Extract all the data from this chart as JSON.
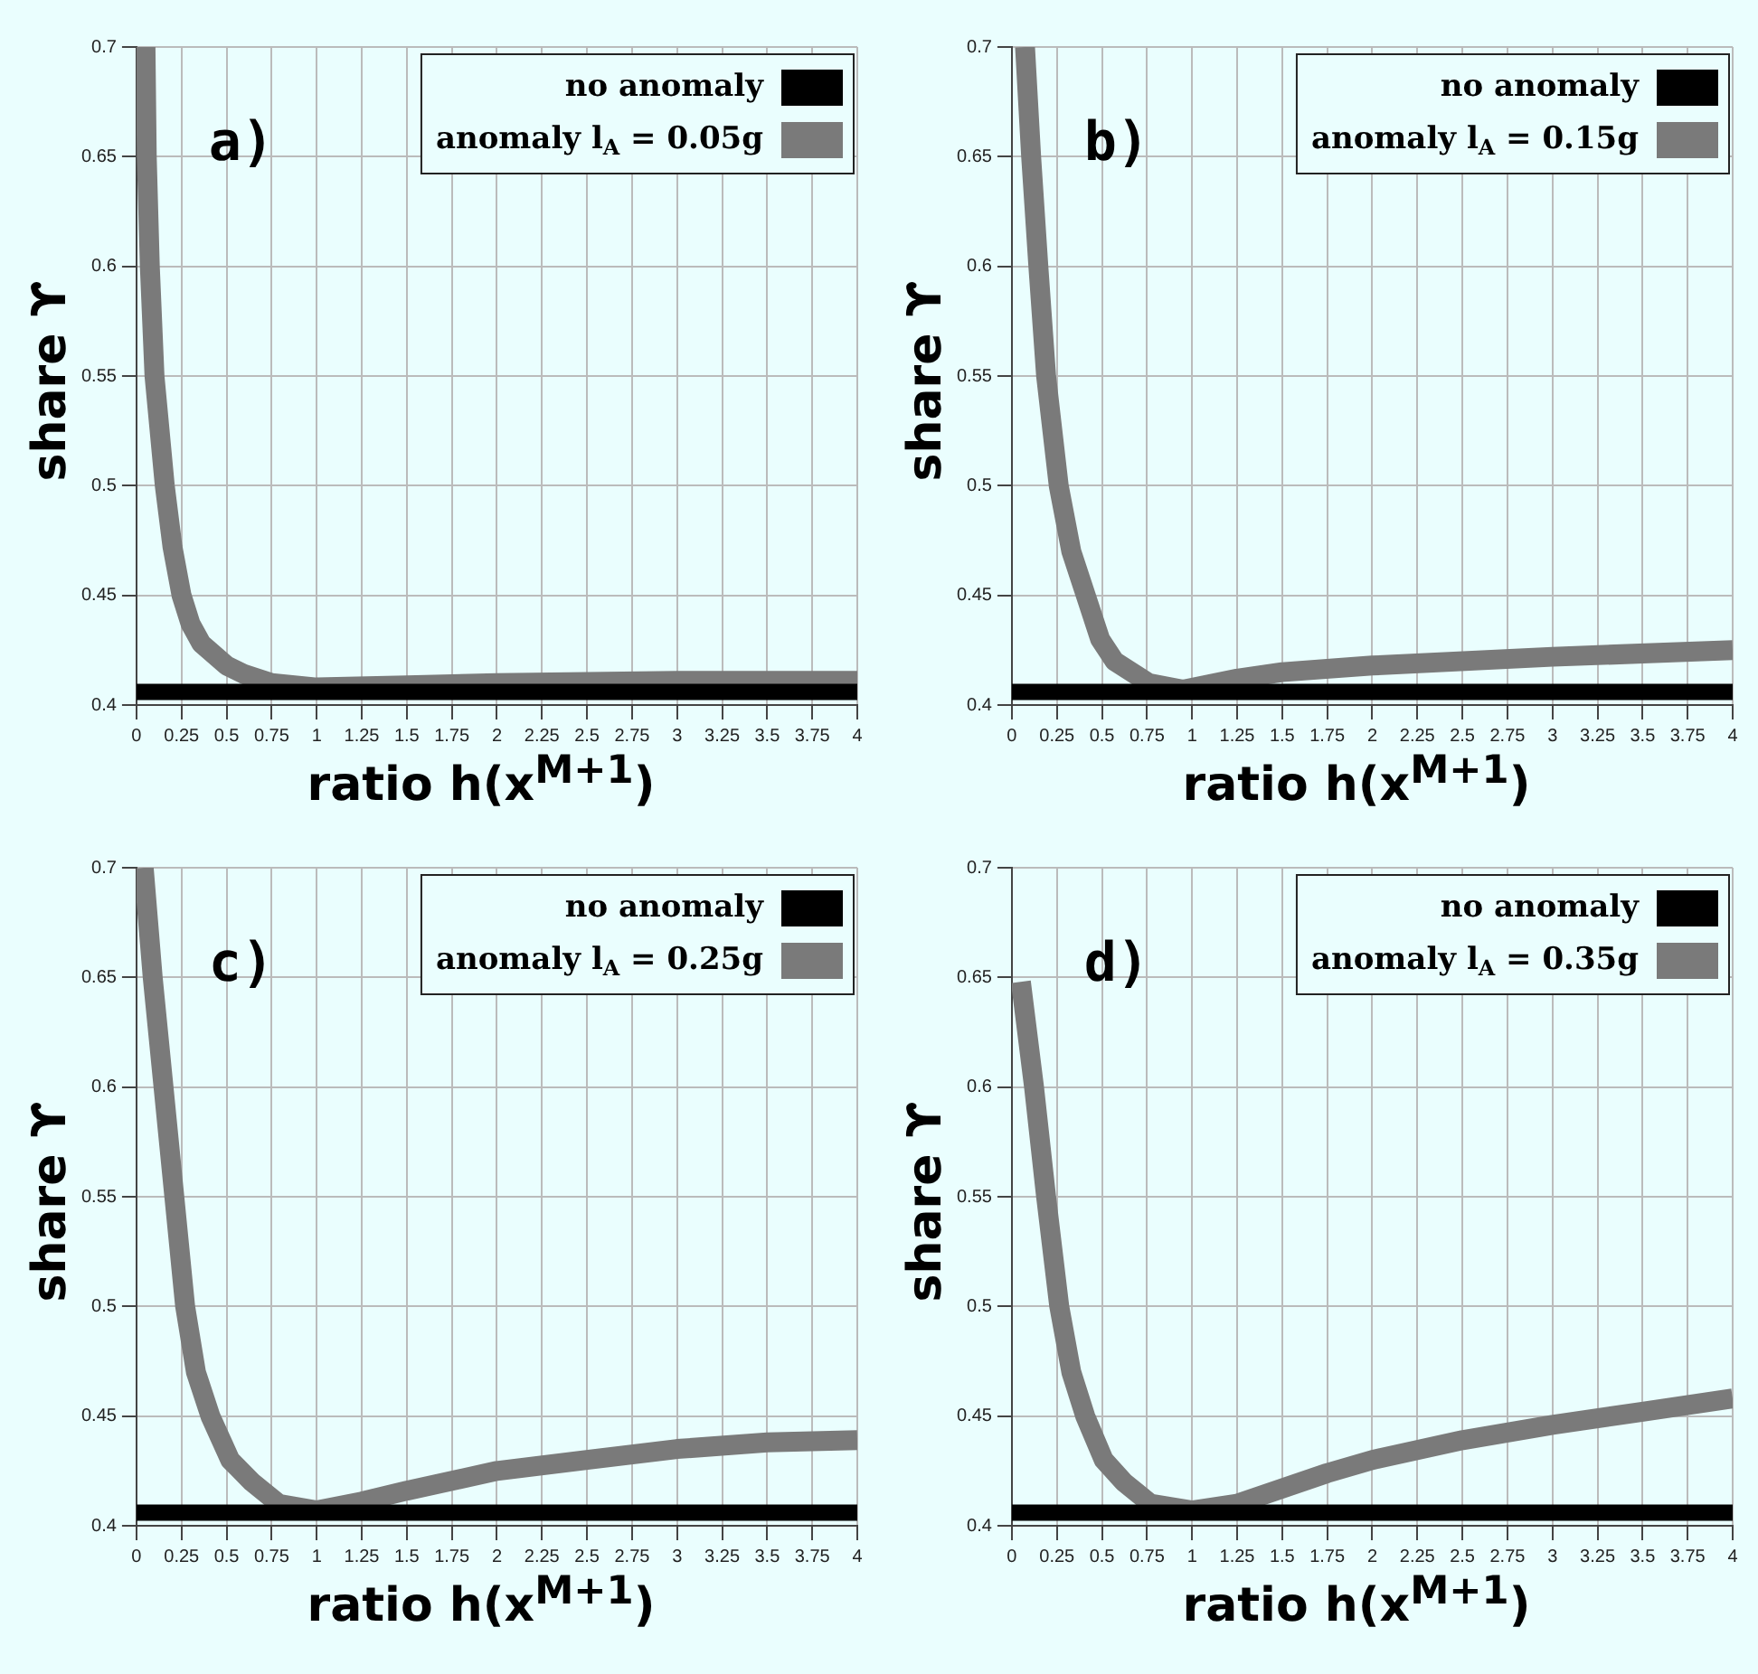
{
  "chart_data": [
    {
      "type": "line",
      "annotations": [
        "a)"
      ],
      "xlabel": "ratio h(x$^{M+1}$)",
      "ylabel": "share ϒ",
      "xlim": [
        0,
        4
      ],
      "ylim": [
        0.4,
        0.7
      ],
      "xticks": [
        0,
        0.25,
        0.5,
        0.75,
        1,
        1.25,
        1.5,
        1.75,
        2,
        2.25,
        2.5,
        2.75,
        3,
        3.25,
        3.5,
        3.75,
        4
      ],
      "yticks": [
        0.4,
        0.45,
        0.5,
        0.55,
        0.6,
        0.65,
        0.7
      ],
      "grid": true,
      "legend": "top right",
      "marker": "none",
      "line_style": "solid",
      "series": [
        {
          "name": "no anomaly",
          "color": "#000000",
          "x": [
            0,
            4
          ],
          "values": [
            0.406,
            0.406
          ]
        },
        {
          "name": "anomaly l$_{A}$ = 0.05g",
          "color": "#7a7a7a",
          "x": [
            0.05,
            0.057,
            0.074,
            0.1,
            0.157,
            0.2,
            0.25,
            0.3,
            0.36,
            0.5,
            0.6,
            0.75,
            1,
            1.5,
            2,
            3,
            4
          ],
          "values": [
            0.7,
            0.65,
            0.6,
            0.55,
            0.5,
            0.472,
            0.45,
            0.437,
            0.428,
            0.418,
            0.414,
            0.41,
            0.408,
            0.409,
            0.41,
            0.411,
            0.411
          ]
        }
      ]
    },
    {
      "type": "line",
      "annotations": [
        "b)"
      ],
      "xlabel": "ratio h(x$^{M+1}$)",
      "ylabel": "share ϒ",
      "xlim": [
        0,
        4
      ],
      "ylim": [
        0.4,
        0.7
      ],
      "xticks": [
        0,
        0.25,
        0.5,
        0.75,
        1,
        1.25,
        1.5,
        1.75,
        2,
        2.25,
        2.5,
        2.75,
        3,
        3.25,
        3.5,
        3.75,
        4
      ],
      "yticks": [
        0.4,
        0.45,
        0.5,
        0.55,
        0.6,
        0.65,
        0.7
      ],
      "grid": true,
      "legend": "top right",
      "marker": "none",
      "line_style": "solid",
      "series": [
        {
          "name": "no anomaly",
          "color": "#000000",
          "x": [
            0,
            4
          ],
          "values": [
            0.406,
            0.406
          ]
        },
        {
          "name": "anomaly l$_{A}$ = 0.15g",
          "color": "#7a7a7a",
          "x": [
            0.073,
            0.107,
            0.147,
            0.19,
            0.26,
            0.33,
            0.41,
            0.49,
            0.57,
            0.76,
            0.95,
            1.25,
            1.5,
            2,
            3,
            4
          ],
          "values": [
            0.7,
            0.65,
            0.6,
            0.55,
            0.5,
            0.47,
            0.45,
            0.43,
            0.42,
            0.41,
            0.407,
            0.412,
            0.415,
            0.418,
            0.422,
            0.425
          ]
        }
      ]
    },
    {
      "type": "line",
      "annotations": [
        "c)"
      ],
      "xlabel": "ratio h(x$^{M+1}$)",
      "ylabel": "share ϒ",
      "xlim": [
        0,
        4
      ],
      "ylim": [
        0.4,
        0.7
      ],
      "xticks": [
        0,
        0.25,
        0.5,
        0.75,
        1,
        1.25,
        1.5,
        1.75,
        2,
        2.25,
        2.5,
        2.75,
        3,
        3.25,
        3.5,
        3.75,
        4
      ],
      "yticks": [
        0.4,
        0.45,
        0.5,
        0.55,
        0.6,
        0.65,
        0.7
      ],
      "grid": true,
      "legend": "top right",
      "marker": "none",
      "line_style": "solid",
      "series": [
        {
          "name": "no anomaly",
          "color": "#000000",
          "x": [
            0,
            4
          ],
          "values": [
            0.406,
            0.406
          ]
        },
        {
          "name": "anomaly l$_{A}$ = 0.25g",
          "color": "#7a7a7a",
          "x": [
            0.04,
            0.09,
            0.15,
            0.21,
            0.27,
            0.33,
            0.41,
            0.52,
            0.64,
            0.79,
            1,
            1.25,
            1.5,
            2,
            2.5,
            3,
            3.5,
            4
          ],
          "values": [
            0.7,
            0.65,
            0.6,
            0.55,
            0.5,
            0.47,
            0.45,
            0.43,
            0.42,
            0.41,
            0.407,
            0.411,
            0.416,
            0.425,
            0.43,
            0.435,
            0.438,
            0.439
          ]
        }
      ]
    },
    {
      "type": "line",
      "annotations": [
        "d)"
      ],
      "xlabel": "ratio h(x$^{M+1}$)",
      "ylabel": "share ϒ",
      "xlim": [
        0,
        4
      ],
      "ylim": [
        0.4,
        0.7
      ],
      "xticks": [
        0,
        0.25,
        0.5,
        0.75,
        1,
        1.25,
        1.5,
        1.75,
        2,
        2.25,
        2.5,
        2.75,
        3,
        3.25,
        3.5,
        3.75,
        4
      ],
      "yticks": [
        0.4,
        0.45,
        0.5,
        0.55,
        0.6,
        0.65,
        0.7
      ],
      "grid": true,
      "legend": "top right",
      "marker": "none",
      "line_style": "solid",
      "series": [
        {
          "name": "no anomaly",
          "color": "#000000",
          "x": [
            0,
            4
          ],
          "values": [
            0.406,
            0.406
          ]
        },
        {
          "name": "anomaly l$_{A}$ = 0.35g",
          "color": "#7a7a7a",
          "x": [
            0.05,
            0.123,
            0.19,
            0.263,
            0.33,
            0.407,
            0.51,
            0.62,
            0.77,
            1,
            1.25,
            1.5,
            1.75,
            2,
            2.5,
            3,
            3.5,
            4
          ],
          "values": [
            0.648,
            0.6,
            0.55,
            0.5,
            0.47,
            0.45,
            0.43,
            0.42,
            0.41,
            0.407,
            0.41,
            0.417,
            0.424,
            0.43,
            0.439,
            0.446,
            0.452,
            0.458
          ]
        }
      ]
    }
  ]
}
